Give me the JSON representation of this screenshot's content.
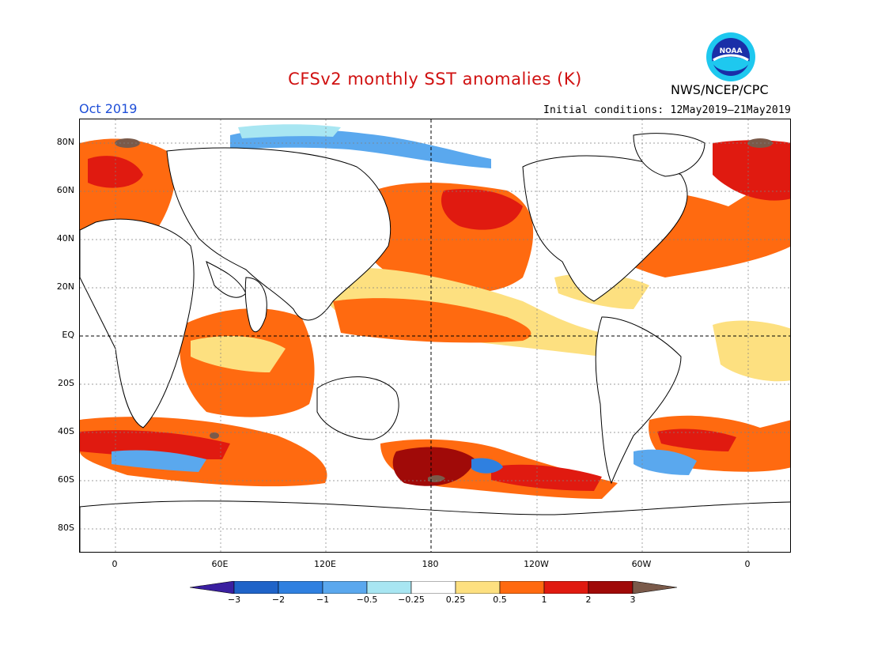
{
  "header": {
    "title": "CFSv2 monthly SST anomalies (K)",
    "valid_month": "Oct 2019",
    "initial_conditions": "Initial conditions: 12May2019–21May2019",
    "agency": "NWS/NCEP/CPC",
    "logo_text": "NOAA"
  },
  "map": {
    "lat_labels": [
      "80N",
      "60N",
      "40N",
      "20N",
      "EQ",
      "20S",
      "40S",
      "60S",
      "80S"
    ],
    "lon_labels": [
      "0",
      "60E",
      "120E",
      "180",
      "120W",
      "60W",
      "0"
    ]
  },
  "colorbar": {
    "labels": [
      "−3",
      "−2",
      "−1",
      "−0.5",
      "−0.25",
      "0.25",
      "0.5",
      "1",
      "2",
      "3"
    ],
    "colors": [
      "#3a1fa0",
      "#1f63c8",
      "#2f80e0",
      "#5aa8ee",
      "#a8e6f2",
      "#ffffff",
      "#fde080",
      "#ff6a10",
      "#e01a10",
      "#a00a08",
      "#7a5a4a"
    ]
  }
}
